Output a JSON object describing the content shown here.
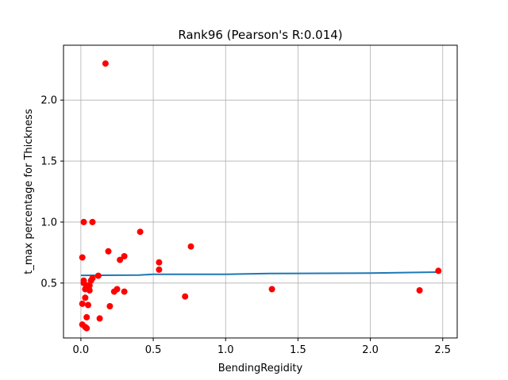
{
  "chart_data": {
    "type": "scatter",
    "title": "Rank96 (Pearson's R:0.014)",
    "xlabel": "BendingRegidity",
    "ylabel": "t_max percentage for Thickness",
    "xlim": [
      -0.12,
      2.6
    ],
    "ylim": [
      0.05,
      2.45
    ],
    "xticks": [
      0.0,
      0.5,
      1.0,
      1.5,
      2.0,
      2.5
    ],
    "xtick_labels": [
      "0.0",
      "0.5",
      "1.0",
      "1.5",
      "2.0",
      "2.5"
    ],
    "yticks": [
      0.5,
      1.0,
      1.5,
      2.0
    ],
    "ytick_labels": [
      "0.5",
      "1.0",
      "1.5",
      "2.0"
    ],
    "grid": true,
    "colors": {
      "points": "#ff0000",
      "fit_line": "#1f77b4",
      "grid": "#b0b0b0"
    },
    "series": [
      {
        "type": "scatter",
        "points": [
          [
            0.17,
            2.3
          ],
          [
            0.02,
            1.0
          ],
          [
            0.08,
            1.0
          ],
          [
            0.41,
            0.92
          ],
          [
            0.76,
            0.8
          ],
          [
            0.19,
            0.76
          ],
          [
            0.01,
            0.71
          ],
          [
            0.3,
            0.72
          ],
          [
            0.27,
            0.69
          ],
          [
            0.54,
            0.67
          ],
          [
            0.54,
            0.61
          ],
          [
            2.47,
            0.6
          ],
          [
            0.12,
            0.56
          ],
          [
            0.08,
            0.54
          ],
          [
            0.07,
            0.52
          ],
          [
            0.02,
            0.52
          ],
          [
            0.02,
            0.5
          ],
          [
            0.04,
            0.48
          ],
          [
            0.06,
            0.48
          ],
          [
            0.05,
            0.46
          ],
          [
            0.03,
            0.45
          ],
          [
            0.06,
            0.44
          ],
          [
            0.25,
            0.45
          ],
          [
            0.23,
            0.43
          ],
          [
            0.3,
            0.43
          ],
          [
            1.32,
            0.45
          ],
          [
            2.34,
            0.44
          ],
          [
            0.72,
            0.39
          ],
          [
            0.03,
            0.38
          ],
          [
            0.01,
            0.33
          ],
          [
            0.05,
            0.32
          ],
          [
            0.2,
            0.31
          ],
          [
            0.04,
            0.22
          ],
          [
            0.13,
            0.21
          ],
          [
            0.01,
            0.16
          ],
          [
            0.03,
            0.14
          ],
          [
            0.04,
            0.13
          ]
        ]
      },
      {
        "type": "line",
        "points": [
          [
            0.0,
            0.563
          ],
          [
            0.4,
            0.565
          ],
          [
            0.5,
            0.572
          ],
          [
            1.0,
            0.572
          ],
          [
            1.3,
            0.578
          ],
          [
            2.0,
            0.582
          ],
          [
            2.47,
            0.59
          ]
        ]
      }
    ]
  }
}
